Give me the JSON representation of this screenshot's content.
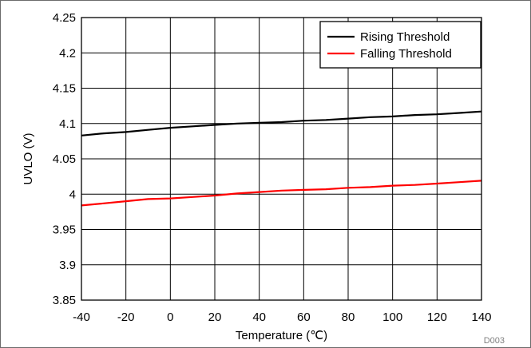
{
  "chart_data": {
    "type": "line",
    "xlabel": "Temperature (℃)",
    "ylabel": "UVLO (V)",
    "xlim": [
      -40,
      140
    ],
    "ylim": [
      3.85,
      4.25
    ],
    "x_ticks": [
      "-40",
      "-20",
      "0",
      "20",
      "40",
      "60",
      "80",
      "100",
      "120",
      "140"
    ],
    "y_ticks": [
      "3.85",
      "3.9",
      "3.95",
      "4",
      "4.05",
      "4.1",
      "4.15",
      "4.2",
      "4.25"
    ],
    "grid": true,
    "legend_position": "top-right",
    "footnote": "D003",
    "series": [
      {
        "name": "Rising Threshold",
        "color": "#000000",
        "x": [
          -40,
          -30,
          -20,
          -10,
          0,
          10,
          20,
          30,
          40,
          50,
          60,
          70,
          80,
          90,
          100,
          110,
          120,
          130,
          140
        ],
        "y": [
          4.083,
          4.086,
          4.088,
          4.091,
          4.094,
          4.096,
          4.098,
          4.1,
          4.101,
          4.102,
          4.104,
          4.105,
          4.107,
          4.109,
          4.11,
          4.112,
          4.113,
          4.115,
          4.117
        ]
      },
      {
        "name": "Falling Threshold",
        "color": "#ff0000",
        "x": [
          -40,
          -30,
          -20,
          -10,
          0,
          10,
          20,
          30,
          40,
          50,
          60,
          70,
          80,
          90,
          100,
          110,
          120,
          130,
          140
        ],
        "y": [
          3.984,
          3.987,
          3.99,
          3.993,
          3.994,
          3.996,
          3.998,
          4.001,
          4.003,
          4.005,
          4.006,
          4.007,
          4.009,
          4.01,
          4.012,
          4.013,
          4.015,
          4.017,
          4.019
        ]
      }
    ]
  }
}
